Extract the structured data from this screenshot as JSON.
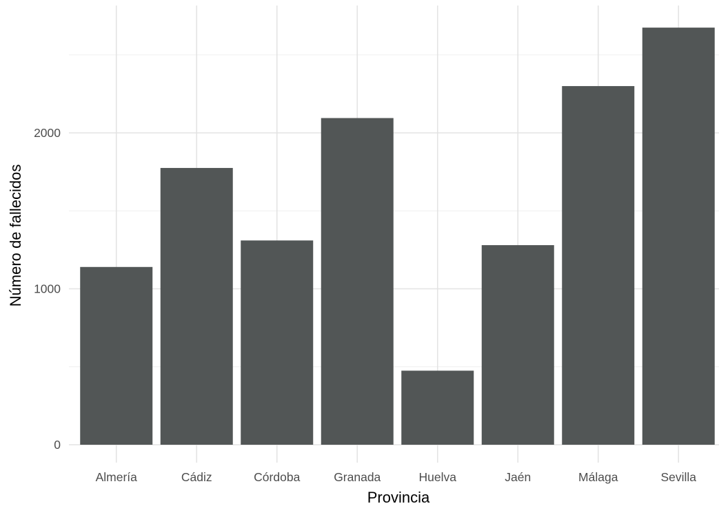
{
  "chart_data": {
    "type": "bar",
    "title": "",
    "xlabel": "Provincia",
    "ylabel": "Número de fallecidos",
    "categories": [
      "Almería",
      "Cádiz",
      "Córdoba",
      "Granada",
      "Huelva",
      "Jaén",
      "Málaga",
      "Sevilla"
    ],
    "values": [
      1140,
      1775,
      1310,
      2095,
      475,
      1280,
      2300,
      2675
    ],
    "ylim": [
      0,
      2675
    ],
    "yticks": [
      0,
      1000,
      2000
    ],
    "ytick_labels": [
      "0",
      "1000",
      "2000"
    ],
    "grid": true,
    "legend": "none",
    "bar_color": "#525656",
    "grid_color": "#e3e3e3"
  }
}
